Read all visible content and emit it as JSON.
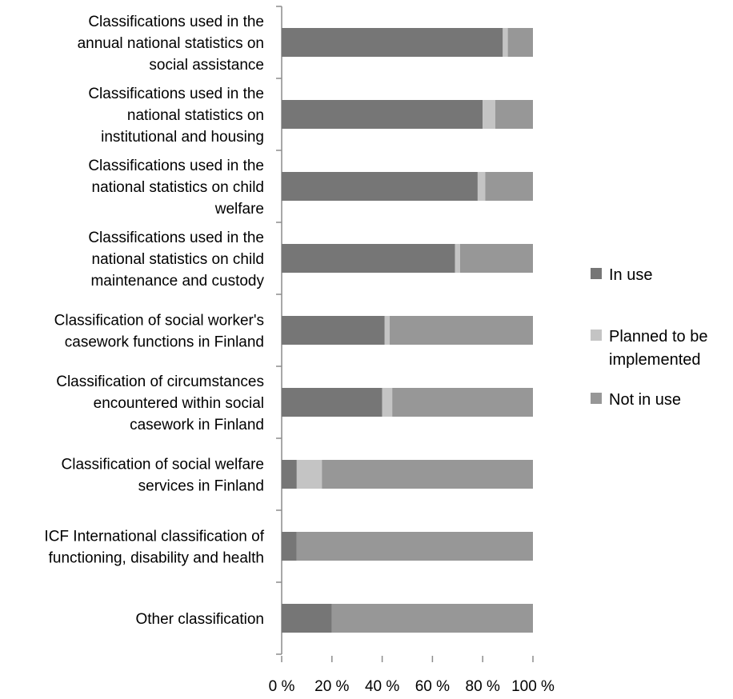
{
  "chart_data": {
    "type": "bar",
    "orientation": "horizontal",
    "stacked": "percent",
    "categories": [
      [
        "Classifications used in the",
        "annual national statistics on",
        "social assistance"
      ],
      [
        "Classifications used in the",
        "national statistics on",
        "institutional and housing"
      ],
      [
        "Classifications used in the",
        "national statistics on child",
        "welfare"
      ],
      [
        "Classifications used in the",
        "national statistics on child",
        "maintenance and custody"
      ],
      [
        "Classification of social worker's",
        "casework functions in Finland"
      ],
      [
        "Classification of circumstances",
        "encountered within social",
        "casework in Finland"
      ],
      [
        "Classification of social welfare",
        "services in Finland"
      ],
      [
        "ICF International classification of",
        "functioning, disability and health"
      ],
      [
        "Other classification"
      ]
    ],
    "series": [
      {
        "name": "In use",
        "color": "#767676",
        "values": [
          88,
          80,
          78,
          69,
          41,
          40,
          6,
          6,
          20
        ]
      },
      {
        "name": "Planned to be implemented",
        "legend_lines": [
          "Planned to be",
          "implemented"
        ],
        "color": "#c4c4c4",
        "values": [
          2,
          5,
          3,
          2,
          2,
          4,
          10,
          0,
          0
        ]
      },
      {
        "name": "Not in use",
        "color": "#979797",
        "values": [
          10,
          15,
          19,
          29,
          57,
          56,
          84,
          94,
          80
        ]
      }
    ],
    "x_ticks": [
      "0 %",
      "20 %",
      "40 %",
      "60 %",
      "80 %",
      "100 %"
    ],
    "xlim": [
      0,
      100
    ],
    "grid": false,
    "legend_position": "right"
  }
}
